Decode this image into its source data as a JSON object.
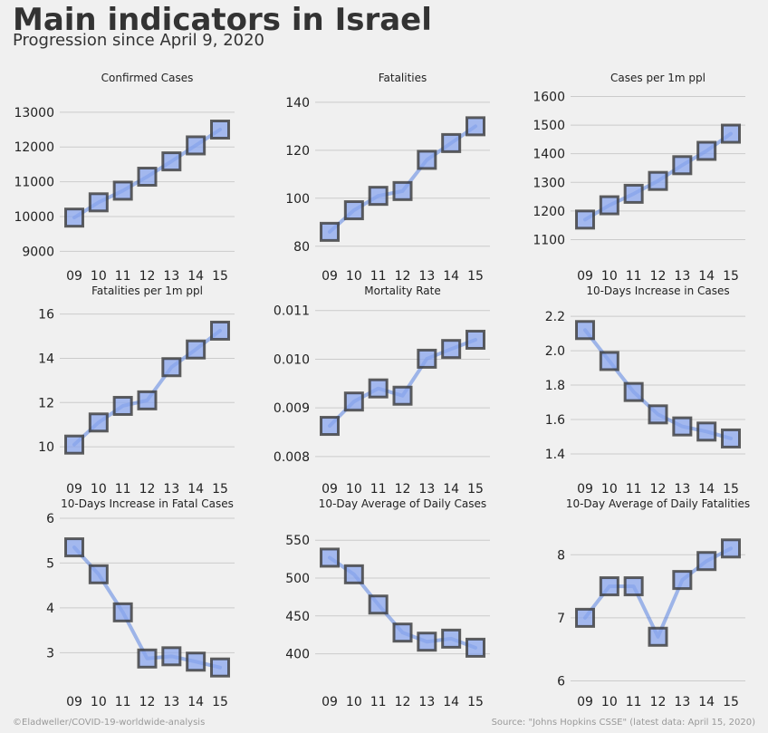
{
  "title": "Main indicators in Israel",
  "subtitle": "Progression since April 9, 2020",
  "footer_left": "©Eladweller/COVID-19-worldwide-analysis",
  "footer_right": "Source: \"Johns Hopkins CSSE\" (latest data: April 15, 2020)",
  "colors": {
    "background": "#f0f0f0",
    "line": "#4a78e0",
    "marker_fill": "#8aa6ee",
    "marker_edge": "#3a3a3a",
    "grid": "#cbcbcb",
    "text": "#222222"
  },
  "chart_data": [
    {
      "type": "line",
      "title": "Confirmed Cases",
      "categories": [
        "09",
        "10",
        "11",
        "12",
        "13",
        "14",
        "15"
      ],
      "values": [
        9968,
        10408,
        10743,
        11145,
        11586,
        12046,
        12501
      ],
      "ylim": [
        8800,
        13700
      ],
      "yticks": [
        9000,
        10000,
        11000,
        12000,
        13000
      ],
      "ytick_labels": [
        "9000",
        "10000",
        "11000",
        "12000",
        "13000"
      ],
      "grid": true
    },
    {
      "type": "line",
      "title": "Fatalities",
      "categories": [
        "09",
        "10",
        "11",
        "12",
        "13",
        "14",
        "15"
      ],
      "values": [
        86,
        95,
        101,
        103,
        116,
        123,
        130
      ],
      "ylim": [
        75,
        146
      ],
      "yticks": [
        80,
        100,
        120,
        140
      ],
      "ytick_labels": [
        "80",
        "100",
        "120",
        "140"
      ],
      "grid": true
    },
    {
      "type": "line",
      "title": "Cases per 1m ppl",
      "categories": [
        "09",
        "10",
        "11",
        "12",
        "13",
        "14",
        "15"
      ],
      "values": [
        1170,
        1220,
        1260,
        1305,
        1360,
        1410,
        1470
      ],
      "ylim": [
        1035,
        1630
      ],
      "yticks": [
        1100,
        1200,
        1300,
        1400,
        1500,
        1600
      ],
      "ytick_labels": [
        "1100",
        "1200",
        "1300",
        "1400",
        "1500",
        "1600"
      ],
      "grid": true
    },
    {
      "type": "line",
      "title": "Fatalities per 1m ppl",
      "categories": [
        "09",
        "10",
        "11",
        "12",
        "13",
        "14",
        "15"
      ],
      "values": [
        10.1,
        11.1,
        11.85,
        12.1,
        13.6,
        14.4,
        15.25
      ],
      "ylim": [
        8.9,
        16.6
      ],
      "yticks": [
        10,
        12,
        14,
        16
      ],
      "ytick_labels": [
        "10",
        "12",
        "14",
        "16"
      ],
      "grid": true
    },
    {
      "type": "line",
      "title": "Mortality Rate",
      "categories": [
        "09",
        "10",
        "11",
        "12",
        "13",
        "14",
        "15"
      ],
      "values": [
        0.00863,
        0.00913,
        0.0094,
        0.00925,
        0.01001,
        0.01021,
        0.0104
      ],
      "ylim": [
        0.0077,
        0.0112
      ],
      "yticks": [
        0.008,
        0.009,
        0.01,
        0.011
      ],
      "ytick_labels": [
        "0.008",
        "0.009",
        "0.010",
        "0.011"
      ],
      "grid": true
    },
    {
      "type": "line",
      "title": "10-Days Increase in Cases",
      "categories": [
        "09",
        "10",
        "11",
        "12",
        "13",
        "14",
        "15"
      ],
      "values": [
        2.12,
        1.94,
        1.76,
        1.63,
        1.56,
        1.53,
        1.49
      ],
      "ylim": [
        1.3,
        2.29
      ],
      "yticks": [
        1.4,
        1.6,
        1.8,
        2.0,
        2.2
      ],
      "ytick_labels": [
        "1.4",
        "1.6",
        "1.8",
        "2.0",
        "2.2"
      ],
      "grid": true
    },
    {
      "type": "line",
      "title": "10-Days Increase in Fatal Cases",
      "categories": [
        "09",
        "10",
        "11",
        "12",
        "13",
        "14",
        "15"
      ],
      "values": [
        5.35,
        4.75,
        3.9,
        2.87,
        2.92,
        2.8,
        2.67
      ],
      "ylim": [
        2.3,
        6.1
      ],
      "yticks": [
        3,
        4,
        5,
        6
      ],
      "ytick_labels": [
        "3",
        "4",
        "5",
        "6"
      ],
      "grid": true
    },
    {
      "type": "line",
      "title": "10-Day Average of Daily Cases",
      "categories": [
        "09",
        "10",
        "11",
        "12",
        "13",
        "14",
        "15"
      ],
      "values": [
        527,
        505,
        465,
        428,
        416,
        420,
        408
      ],
      "ylim": [
        360,
        585
      ],
      "yticks": [
        400,
        450,
        500,
        550
      ],
      "ytick_labels": [
        "400",
        "450",
        "500",
        "550"
      ],
      "grid": true
    },
    {
      "type": "line",
      "title": "10-Day Average of Daily Fatalities",
      "categories": [
        "09",
        "10",
        "11",
        "12",
        "13",
        "14",
        "15"
      ],
      "values": [
        7.0,
        7.5,
        7.5,
        6.7,
        7.6,
        7.9,
        8.1
      ],
      "ylim": [
        5.95,
        8.65
      ],
      "yticks": [
        6,
        7,
        8
      ],
      "ytick_labels": [
        "6",
        "7",
        "8"
      ],
      "grid": true
    }
  ]
}
